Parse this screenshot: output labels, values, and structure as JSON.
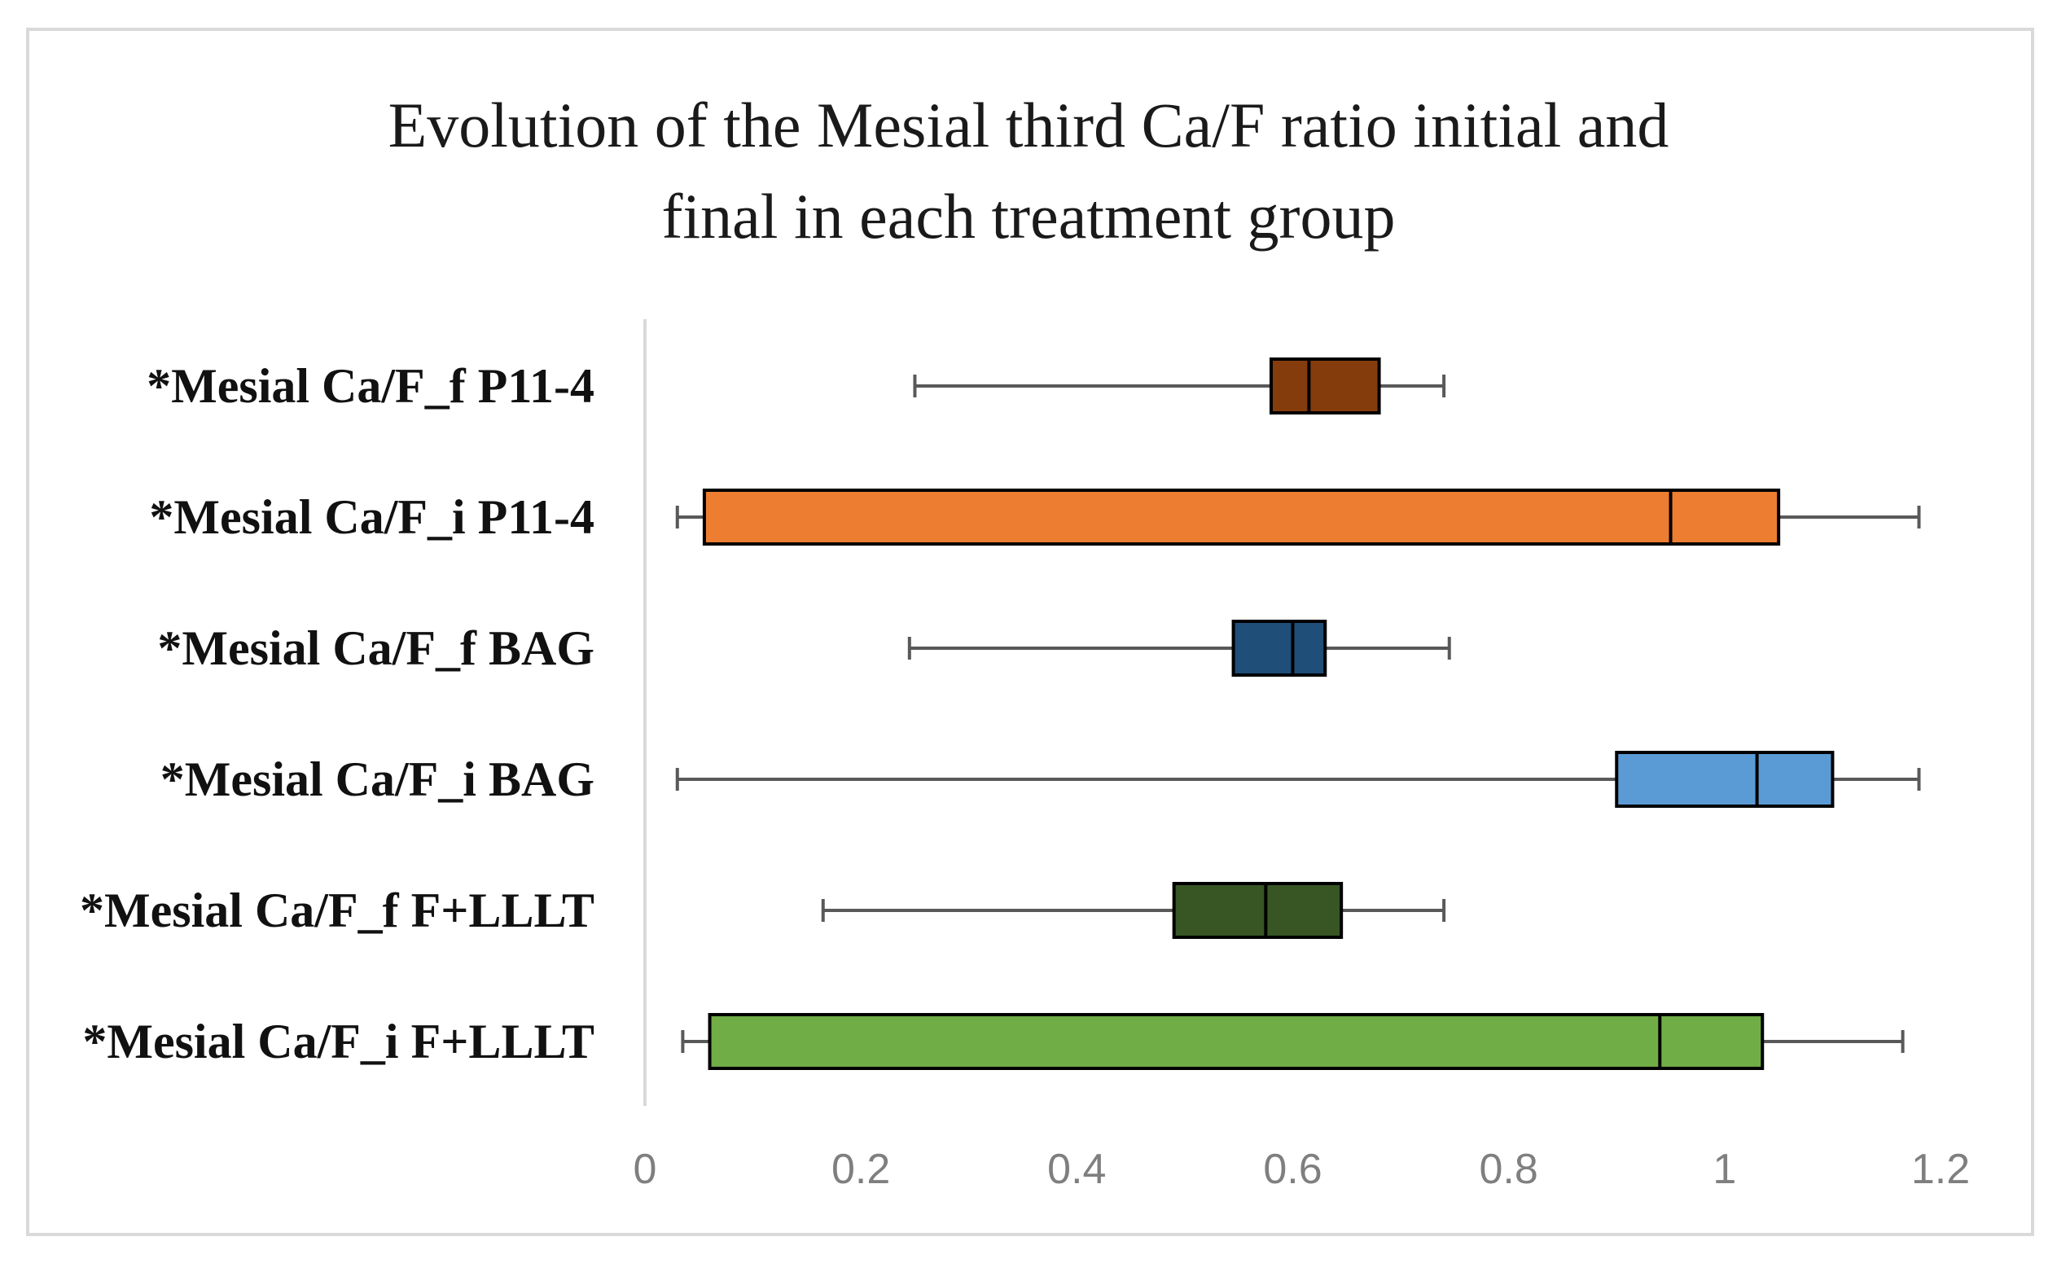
{
  "chart_data": {
    "type": "boxplot",
    "orientation": "horizontal",
    "title_lines": [
      "Evolution of the Mesial third Ca/F ratio initial and",
      "final in each treatment group"
    ],
    "xlim": [
      0,
      1.2
    ],
    "xticks": [
      "0",
      "0.2",
      "0.4",
      "0.6",
      "0.8",
      "1",
      "1.2"
    ],
    "tick_values": [
      0,
      0.2,
      0.4,
      0.6,
      0.8,
      1.0,
      1.2
    ],
    "gridlines": false,
    "legend": "none",
    "series": [
      {
        "name": "*Mesial Ca/F_f P11-4",
        "min": 0.25,
        "q1": 0.58,
        "median": 0.615,
        "q3": 0.68,
        "max": 0.74,
        "color": "#843c0c"
      },
      {
        "name": "*Mesial Ca/F_i P11-4",
        "min": 0.03,
        "q1": 0.055,
        "median": 0.95,
        "q3": 1.05,
        "max": 1.18,
        "color": "#ed7d31"
      },
      {
        "name": "*Mesial Ca/F_f BAG",
        "min": 0.245,
        "q1": 0.545,
        "median": 0.6,
        "q3": 0.63,
        "max": 0.745,
        "color": "#1f4e79"
      },
      {
        "name": "*Mesial Ca/F_i BAG",
        "min": 0.03,
        "q1": 0.9,
        "median": 1.03,
        "q3": 1.1,
        "max": 1.18,
        "color": "#5b9bd5"
      },
      {
        "name": "*Mesial Ca/F_f F+LLLT",
        "min": 0.165,
        "q1": 0.49,
        "median": 0.575,
        "q3": 0.645,
        "max": 0.74,
        "color": "#375623"
      },
      {
        "name": "*Mesial Ca/F_i F+LLLT",
        "min": 0.035,
        "q1": 0.06,
        "median": 0.94,
        "q3": 1.035,
        "max": 1.165,
        "color": "#70ad47"
      }
    ]
  }
}
